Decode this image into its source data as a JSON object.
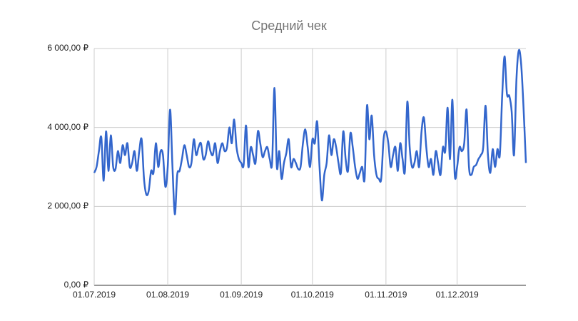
{
  "chart_data": {
    "type": "line",
    "title": "Средний чек",
    "x": [
      "2019-07-01",
      "2019-07-02",
      "2019-07-03",
      "2019-07-04",
      "2019-07-05",
      "2019-07-06",
      "2019-07-07",
      "2019-07-08",
      "2019-07-09",
      "2019-07-10",
      "2019-07-11",
      "2019-07-12",
      "2019-07-13",
      "2019-07-14",
      "2019-07-15",
      "2019-07-16",
      "2019-07-17",
      "2019-07-18",
      "2019-07-19",
      "2019-07-20",
      "2019-07-21",
      "2019-07-22",
      "2019-07-23",
      "2019-07-24",
      "2019-07-25",
      "2019-07-26",
      "2019-07-27",
      "2019-07-28",
      "2019-07-29",
      "2019-07-30",
      "2019-07-31",
      "2019-08-01",
      "2019-08-02",
      "2019-08-03",
      "2019-08-04",
      "2019-08-05",
      "2019-08-06",
      "2019-08-07",
      "2019-08-08",
      "2019-08-09",
      "2019-08-10",
      "2019-08-11",
      "2019-08-12",
      "2019-08-13",
      "2019-08-14",
      "2019-08-15",
      "2019-08-16",
      "2019-08-17",
      "2019-08-18",
      "2019-08-19",
      "2019-08-20",
      "2019-08-21",
      "2019-08-22",
      "2019-08-23",
      "2019-08-24",
      "2019-08-25",
      "2019-08-26",
      "2019-08-27",
      "2019-08-28",
      "2019-08-29",
      "2019-08-30",
      "2019-08-31",
      "2019-09-01",
      "2019-09-02",
      "2019-09-03",
      "2019-09-04",
      "2019-09-05",
      "2019-09-06",
      "2019-09-07",
      "2019-09-08",
      "2019-09-09",
      "2019-09-10",
      "2019-09-11",
      "2019-09-12",
      "2019-09-13",
      "2019-09-14",
      "2019-09-15",
      "2019-09-16",
      "2019-09-17",
      "2019-09-18",
      "2019-09-19",
      "2019-09-20",
      "2019-09-21",
      "2019-09-22",
      "2019-09-23",
      "2019-09-24",
      "2019-09-25",
      "2019-09-26",
      "2019-09-27",
      "2019-09-28",
      "2019-09-29",
      "2019-09-30",
      "2019-10-01",
      "2019-10-02",
      "2019-10-03",
      "2019-10-04",
      "2019-10-05",
      "2019-10-06",
      "2019-10-07",
      "2019-10-08",
      "2019-10-09",
      "2019-10-10",
      "2019-10-11",
      "2019-10-12",
      "2019-10-13",
      "2019-10-14",
      "2019-10-15",
      "2019-10-16",
      "2019-10-17",
      "2019-10-18",
      "2019-10-19",
      "2019-10-20",
      "2019-10-21",
      "2019-10-22",
      "2019-10-23",
      "2019-10-24",
      "2019-10-25",
      "2019-10-26",
      "2019-10-27",
      "2019-10-28",
      "2019-10-29",
      "2019-10-30",
      "2019-10-31",
      "2019-11-01",
      "2019-11-02",
      "2019-11-03",
      "2019-11-04",
      "2019-11-05",
      "2019-11-06",
      "2019-11-07",
      "2019-11-08",
      "2019-11-09",
      "2019-11-10",
      "2019-11-11",
      "2019-11-12",
      "2019-11-13",
      "2019-11-14",
      "2019-11-15",
      "2019-11-16",
      "2019-11-17",
      "2019-11-18",
      "2019-11-19",
      "2019-11-20",
      "2019-11-21",
      "2019-11-22",
      "2019-11-23",
      "2019-11-24",
      "2019-11-25",
      "2019-11-26",
      "2019-11-27",
      "2019-11-28",
      "2019-11-29",
      "2019-11-30",
      "2019-12-01",
      "2019-12-02",
      "2019-12-03",
      "2019-12-04",
      "2019-12-05",
      "2019-12-06",
      "2019-12-07",
      "2019-12-08",
      "2019-12-09",
      "2019-12-10",
      "2019-12-11",
      "2019-12-12",
      "2019-12-13",
      "2019-12-14",
      "2019-12-15",
      "2019-12-16",
      "2019-12-17",
      "2019-12-18",
      "2019-12-19",
      "2019-12-20",
      "2019-12-21",
      "2019-12-22",
      "2019-12-23",
      "2019-12-24",
      "2019-12-25",
      "2019-12-26",
      "2019-12-27",
      "2019-12-28",
      "2019-12-29",
      "2019-12-30"
    ],
    "series": [
      {
        "color": "#3366cc",
        "values": [
          2850,
          3000,
          3400,
          3750,
          2650,
          3900,
          2900,
          3800,
          3000,
          2950,
          3400,
          3100,
          3550,
          3300,
          3600,
          3000,
          3100,
          3400,
          2900,
          3400,
          3700,
          2700,
          2300,
          2400,
          2900,
          2850,
          3600,
          3000,
          3400,
          3300,
          2500,
          3000,
          4450,
          3000,
          1800,
          2800,
          2900,
          3200,
          3550,
          3300,
          3000,
          3100,
          3700,
          3300,
          3500,
          3600,
          3200,
          3300,
          3650,
          3400,
          3300,
          3600,
          3100,
          3400,
          3600,
          3400,
          3500,
          4000,
          3600,
          4200,
          3500,
          3200,
          3100,
          3050,
          4050,
          3000,
          3500,
          3300,
          3100,
          3900,
          3600,
          3250,
          3400,
          3500,
          3200,
          3100,
          5000,
          3000,
          3400,
          2700,
          3100,
          3350,
          3700,
          3000,
          3200,
          3100,
          2950,
          3000,
          3600,
          3950,
          3500,
          3000,
          3700,
          3600,
          4150,
          3000,
          2150,
          2800,
          3100,
          3800,
          3300,
          3700,
          3500,
          3100,
          2850,
          3900,
          3200,
          2900,
          3850,
          3500,
          3000,
          2700,
          2850,
          3000,
          2700,
          4550,
          3700,
          4300,
          3300,
          2800,
          2700,
          2700,
          3700,
          3900,
          3600,
          3000,
          3300,
          3500,
          2900,
          3600,
          3200,
          2900,
          4650,
          3500,
          3000,
          3100,
          3400,
          3000,
          3900,
          4250,
          3500,
          3000,
          3200,
          2800,
          3400,
          3100,
          2800,
          3500,
          3400,
          4500,
          3200,
          4700,
          2800,
          3000,
          3500,
          3400,
          3600,
          4450,
          3000,
          2800,
          3000,
          3050,
          3200,
          3300,
          3500,
          4550,
          3300,
          2850,
          3450,
          3000,
          3450,
          3300,
          4800,
          5800,
          4850,
          4800,
          4400,
          3300,
          5200,
          5950,
          5600,
          4500,
          3100
        ]
      }
    ],
    "xlim": [
      "2019-07-01",
      "2019-12-30"
    ],
    "xticks": [
      {
        "value": "2019-07-01",
        "label": "01.07.2019"
      },
      {
        "value": "2019-08-01",
        "label": "01.08.2019"
      },
      {
        "value": "2019-09-01",
        "label": "01.09.2019"
      },
      {
        "value": "2019-10-01",
        "label": "01.10.2019"
      },
      {
        "value": "2019-11-01",
        "label": "01.11.2019"
      },
      {
        "value": "2019-12-01",
        "label": "01.12.2019"
      }
    ],
    "ylim": [
      0,
      6000
    ],
    "yticks": [
      {
        "value": 0,
        "label": "0,00 ₽"
      },
      {
        "value": 2000,
        "label": "2 000,00 ₽"
      },
      {
        "value": 4000,
        "label": "4 000,00 ₽"
      },
      {
        "value": 6000,
        "label": "6 000,00 ₽"
      }
    ],
    "grid": true
  }
}
